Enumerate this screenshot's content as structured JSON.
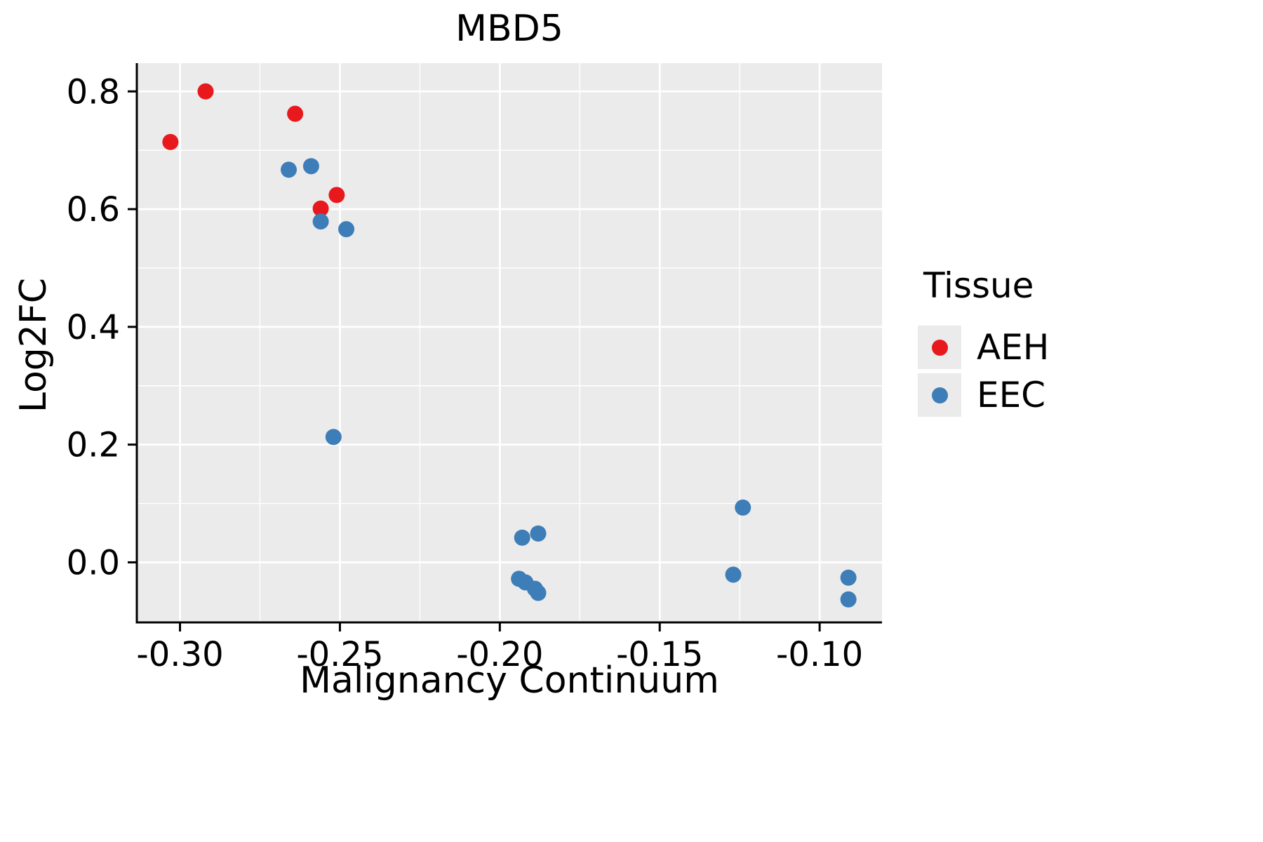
{
  "chart_data": {
    "type": "scatter",
    "title": "MBD5",
    "xlabel": "Malignancy Continuum",
    "ylabel": "Log2FC",
    "xlim": [
      -0.3135,
      -0.0805
    ],
    "ylim": [
      -0.102,
      0.848
    ],
    "x_ticks": [
      -0.3,
      -0.25,
      -0.2,
      -0.15,
      -0.1
    ],
    "x_tick_labels": [
      "-0.30",
      "-0.25",
      "-0.20",
      "-0.15",
      "-0.10"
    ],
    "x_minor_ticks": [
      -0.275,
      -0.225,
      -0.175,
      -0.125
    ],
    "y_ticks": [
      0.0,
      0.2,
      0.4,
      0.6,
      0.8
    ],
    "y_tick_labels": [
      "0.0",
      "0.2",
      "0.4",
      "0.6",
      "0.8"
    ],
    "y_minor_ticks": [
      -0.1,
      0.1,
      0.3,
      0.5,
      0.7
    ],
    "grid": true,
    "panel_bg": "#ebebeb",
    "grid_color": "#ffffff",
    "axis_color": "#000000",
    "legend": {
      "title": "Tissue",
      "position": "right",
      "entries": [
        {
          "label": "AEH",
          "color": "#e8191c"
        },
        {
          "label": "EEC",
          "color": "#3d7db8"
        }
      ]
    },
    "series": [
      {
        "name": "AEH",
        "color": "#e8191c",
        "points": [
          [
            -0.303,
            0.714
          ],
          [
            -0.292,
            0.8
          ],
          [
            -0.264,
            0.762
          ],
          [
            -0.256,
            0.601
          ],
          [
            -0.251,
            0.624
          ]
        ]
      },
      {
        "name": "EEC",
        "color": "#3d7db8",
        "points": [
          [
            -0.266,
            0.667
          ],
          [
            -0.259,
            0.673
          ],
          [
            -0.256,
            0.579
          ],
          [
            -0.248,
            0.566
          ],
          [
            -0.252,
            0.213
          ],
          [
            -0.193,
            0.042
          ],
          [
            -0.188,
            0.049
          ],
          [
            -0.194,
            -0.028
          ],
          [
            -0.192,
            -0.034
          ],
          [
            -0.189,
            -0.045
          ],
          [
            -0.188,
            -0.052
          ],
          [
            -0.124,
            0.093
          ],
          [
            -0.127,
            -0.021
          ],
          [
            -0.091,
            -0.026
          ],
          [
            -0.091,
            -0.063
          ]
        ]
      }
    ]
  }
}
